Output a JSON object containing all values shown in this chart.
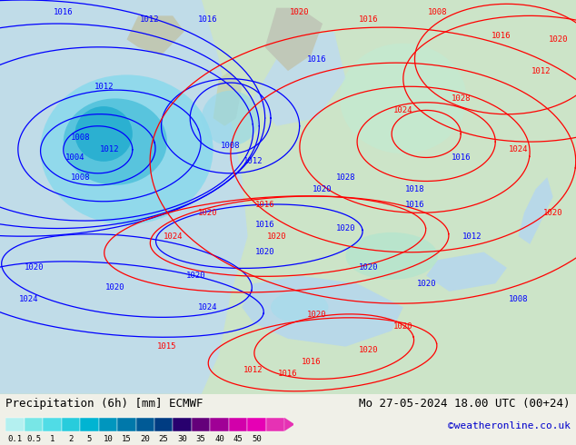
{
  "title_left": "Precipitation (6h) [mm] ECMWF",
  "title_right": "Mo 27-05-2024 18.00 UTC (00+24)",
  "credit": "©weatheronline.co.uk",
  "colorbar_tick_labels": [
    "0.1",
    "0.5",
    "1",
    "2",
    "5",
    "10",
    "15",
    "20",
    "25",
    "30",
    "35",
    "40",
    "45",
    "50"
  ],
  "colorbar_colors": [
    "#b4f0f0",
    "#78e6e6",
    "#50dce6",
    "#28ccdc",
    "#00b4d2",
    "#0096be",
    "#0078aa",
    "#005a96",
    "#003c82",
    "#28006e",
    "#64007a",
    "#a00096",
    "#d200aa",
    "#e600b4",
    "#e632b4"
  ],
  "bg_color": "#f0f0e8",
  "title_fontsize": 9,
  "credit_color": "#0000cc",
  "figsize": [
    6.34,
    4.9
  ],
  "dpi": 100,
  "map_ocean_color": "#c8e8f0",
  "map_land_color": "#d8ead8",
  "map_gray_color": "#b8b8b8"
}
